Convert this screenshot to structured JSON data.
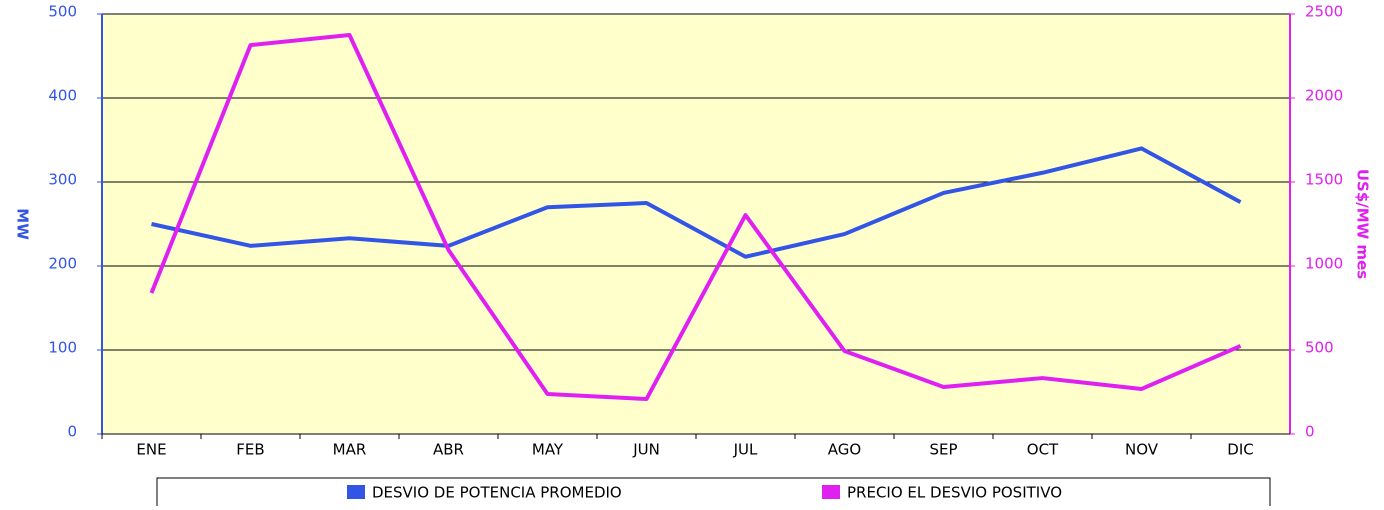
{
  "chart_data": {
    "type": "line",
    "categories": [
      "ENE",
      "FEB",
      "MAR",
      "ABR",
      "MAY",
      "JUN",
      "JUL",
      "AGO",
      "SEP",
      "OCT",
      "NOV",
      "DIC"
    ],
    "y_label": "MW",
    "y2_label": "US$/MW mes",
    "series": [
      {
        "name": "DESVIO DE POTENCIA PROMEDIO",
        "color": "#3355e6",
        "values": [
          250,
          224,
          233,
          224,
          270,
          275,
          211,
          238,
          287,
          311,
          340,
          276
        ]
      },
      {
        "name": "PRECIO EL DESVIO POSITIVO",
        "color": "#e020f0",
        "axis": "y2",
        "values": [
          839,
          2315,
          2375,
          1095,
          238,
          208,
          1303,
          494,
          280,
          333,
          268,
          524
        ]
      }
    ],
    "ylim": [
      0,
      500
    ],
    "yticks": [
      0,
      100,
      200,
      300,
      400,
      500
    ],
    "y2lim": [
      0,
      2500
    ],
    "y2ticks": [
      0,
      500,
      1000,
      1500,
      2000,
      2500
    ],
    "grid": true,
    "legend": "bottom"
  }
}
